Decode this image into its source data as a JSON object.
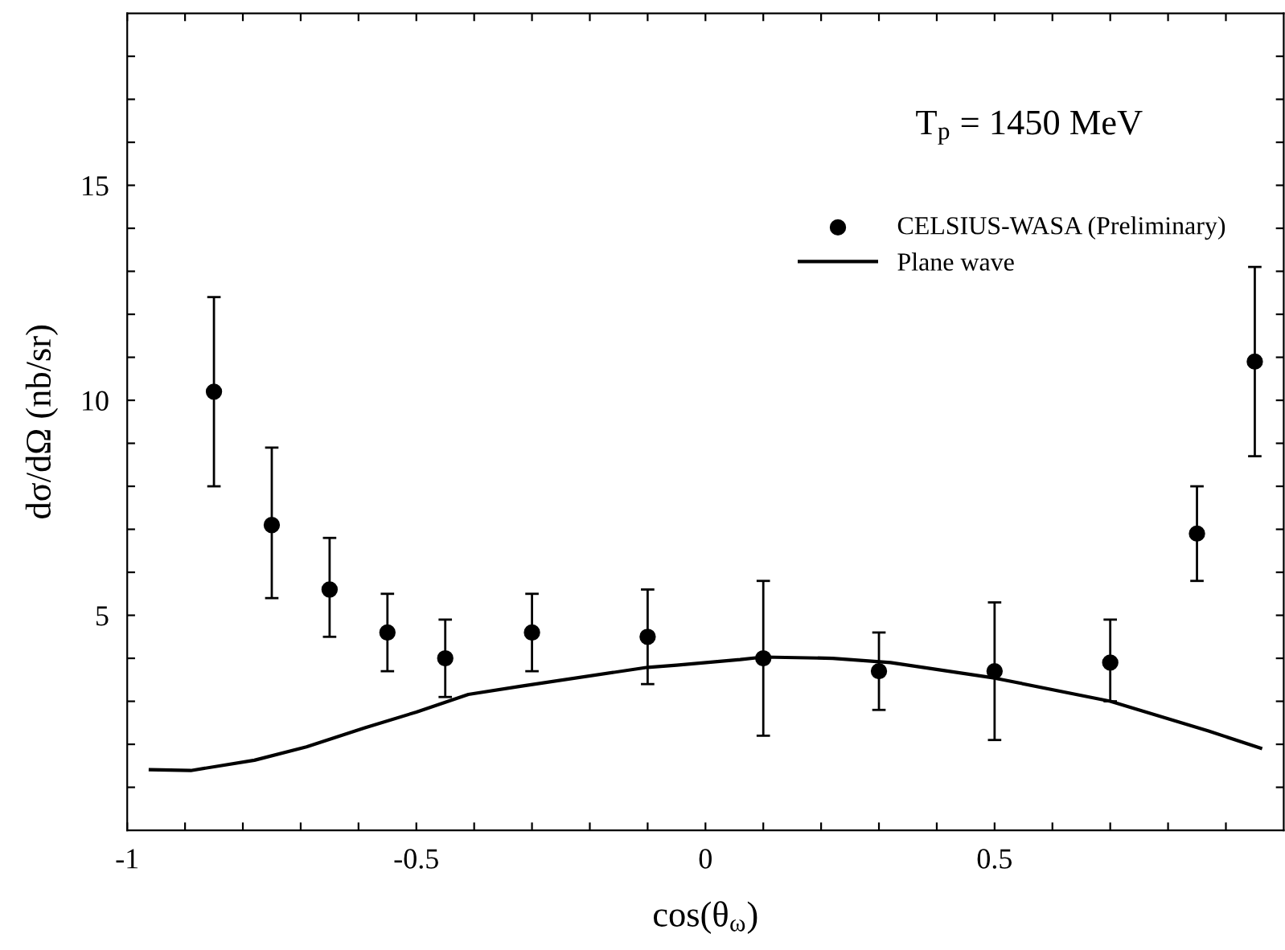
{
  "chart_data": {
    "type": "scatter",
    "xlabel": "cos(θ$_{ω}$)",
    "ylabel": "dσ/dΩ (nb/sr)",
    "annotations": [
      "T$_{p}$ = 1450 MeV"
    ],
    "xlim": [
      -1,
      1
    ],
    "ylim": [
      0,
      19
    ],
    "xticks": [
      -1,
      {
        "value": -0.9,
        "label": null
      },
      {
        "value": -0.8,
        "label": null
      },
      {
        "value": -0.7,
        "label": null
      },
      {
        "value": -0.6,
        "label": null
      },
      -0.5,
      {
        "value": -0.4,
        "label": null
      },
      {
        "value": -0.3,
        "label": null
      },
      {
        "value": -0.2,
        "label": null
      },
      {
        "value": -0.1,
        "label": null
      },
      0,
      {
        "value": 0.1,
        "label": null
      },
      {
        "value": 0.2,
        "label": null
      },
      {
        "value": 0.3,
        "label": null
      },
      {
        "value": 0.4,
        "label": null
      },
      0.5,
      {
        "value": 0.6,
        "label": null
      },
      {
        "value": 0.7,
        "label": null
      },
      {
        "value": 0.8,
        "label": null
      },
      {
        "value": 0.9,
        "label": null
      }
    ],
    "yticks": [
      {
        "value": 1,
        "label": null
      },
      {
        "value": 2,
        "label": null
      },
      {
        "value": 3,
        "label": null
      },
      {
        "value": 4,
        "label": null
      },
      5,
      {
        "value": 6,
        "label": null
      },
      {
        "value": 7,
        "label": null
      },
      {
        "value": 8,
        "label": null
      },
      {
        "value": 9,
        "label": null
      },
      10,
      {
        "value": 11,
        "label": null
      },
      {
        "value": 12,
        "label": null
      },
      {
        "value": 13,
        "label": null
      },
      {
        "value": 14,
        "label": null
      },
      15,
      {
        "value": 16,
        "label": null
      },
      {
        "value": 17,
        "label": null
      },
      {
        "value": 18,
        "label": null
      }
    ],
    "grid": false,
    "legend": "top right",
    "series": [
      {
        "name": "CELSIUS-WASA (Preliminary)",
        "marker": "circle",
        "color": "#000000",
        "x": [
          -0.85,
          -0.75,
          -0.65,
          -0.55,
          -0.45,
          -0.3,
          -0.1,
          0.1,
          0.3,
          0.5,
          0.7,
          0.85,
          0.95
        ],
        "values": [
          10.2,
          7.1,
          5.6,
          4.6,
          4.0,
          4.6,
          4.5,
          4.0,
          3.7,
          3.7,
          3.9,
          6.9,
          10.9
        ],
        "errors": [
          [
            8.0,
            12.4
          ],
          [
            5.4,
            8.9
          ],
          [
            4.5,
            6.8
          ],
          [
            3.7,
            5.5
          ],
          [
            3.1,
            4.9
          ],
          [
            3.7,
            5.5
          ],
          [
            3.4,
            5.6
          ],
          [
            2.2,
            5.8
          ],
          [
            2.8,
            4.6
          ],
          [
            2.1,
            5.3
          ],
          [
            3.0,
            4.9
          ],
          [
            5.8,
            8.0
          ],
          [
            8.7,
            13.1
          ]
        ]
      },
      {
        "name": "Plane wave",
        "type": "line",
        "line_style": "solid",
        "color": "#000000",
        "x": [
          -0.96,
          -0.89,
          -0.78,
          -0.69,
          -0.59,
          -0.5,
          -0.41,
          -0.32,
          -0.1,
          -0.05,
          0.06,
          0.1,
          0.22,
          0.32,
          0.5,
          0.7,
          0.87,
          0.96
        ],
        "values": [
          1.41,
          1.39,
          1.63,
          1.94,
          2.38,
          2.75,
          3.16,
          3.35,
          3.79,
          3.84,
          3.97,
          4.03,
          4.0,
          3.9,
          3.54,
          3.0,
          2.31,
          1.91
        ]
      }
    ]
  }
}
